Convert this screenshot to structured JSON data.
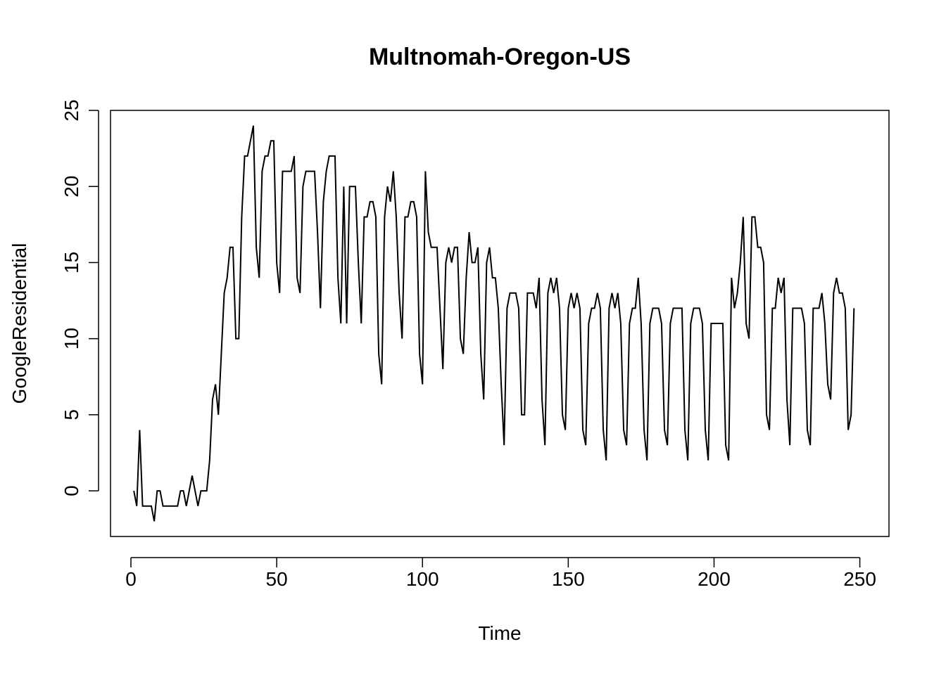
{
  "chart_data": {
    "type": "line",
    "title": "Multnomah-Oregon-US",
    "xlabel": "Time",
    "ylabel": "GoogleResidential",
    "xlim": [
      -7,
      260
    ],
    "ylim": [
      -3,
      25
    ],
    "xticks": [
      0,
      50,
      100,
      150,
      200,
      250
    ],
    "yticks": [
      0,
      5,
      10,
      15,
      20,
      25
    ],
    "grid": false,
    "series": [
      {
        "color": "#000000",
        "x_start": 1,
        "values": [
          0,
          -1,
          4,
          -1,
          -1,
          -1,
          -1,
          -2,
          0,
          0,
          -1,
          -1,
          -1,
          -1,
          -1,
          -1,
          0,
          0,
          -1,
          0,
          1,
          0,
          -1,
          0,
          0,
          0,
          2,
          6,
          7,
          5,
          9,
          13,
          14,
          16,
          16,
          10,
          10,
          18,
          22,
          22,
          23,
          24,
          16,
          14,
          21,
          22,
          22,
          23,
          23,
          15,
          13,
          21,
          21,
          21,
          21,
          22,
          14,
          13,
          20,
          21,
          21,
          21,
          21,
          17,
          12,
          19,
          21,
          22,
          22,
          22,
          14,
          11,
          20,
          11,
          20,
          20,
          20,
          15,
          11,
          18,
          18,
          19,
          19,
          18,
          9,
          7,
          18,
          20,
          19,
          21,
          18,
          13,
          10,
          18,
          18,
          19,
          19,
          18,
          9,
          7,
          21,
          17,
          16,
          16,
          16,
          12,
          8,
          15,
          16,
          15,
          16,
          16,
          10,
          9,
          14,
          17,
          15,
          15,
          16,
          9,
          6,
          15,
          16,
          14,
          14,
          12,
          7,
          3,
          12,
          13,
          13,
          13,
          12,
          5,
          5,
          13,
          13,
          13,
          12,
          14,
          6,
          3,
          13,
          14,
          13,
          14,
          12,
          5,
          4,
          12,
          13,
          12,
          13,
          12,
          4,
          3,
          11,
          12,
          12,
          13,
          12,
          4,
          2,
          12,
          13,
          12,
          13,
          11,
          4,
          3,
          11,
          12,
          12,
          14,
          11,
          4,
          2,
          11,
          12,
          12,
          12,
          11,
          4,
          3,
          11,
          12,
          12,
          12,
          12,
          4,
          2,
          11,
          12,
          12,
          12,
          11,
          4,
          2,
          11,
          11,
          11,
          11,
          11,
          3,
          2,
          14,
          12,
          13,
          15,
          18,
          11,
          10,
          18,
          18,
          16,
          16,
          15,
          5,
          4,
          12,
          12,
          14,
          13,
          14,
          6,
          3,
          12,
          12,
          12,
          12,
          11,
          4,
          3,
          12,
          12,
          12,
          13,
          11,
          7,
          6,
          13,
          14,
          13,
          13,
          12,
          4,
          5,
          12
        ]
      }
    ]
  }
}
